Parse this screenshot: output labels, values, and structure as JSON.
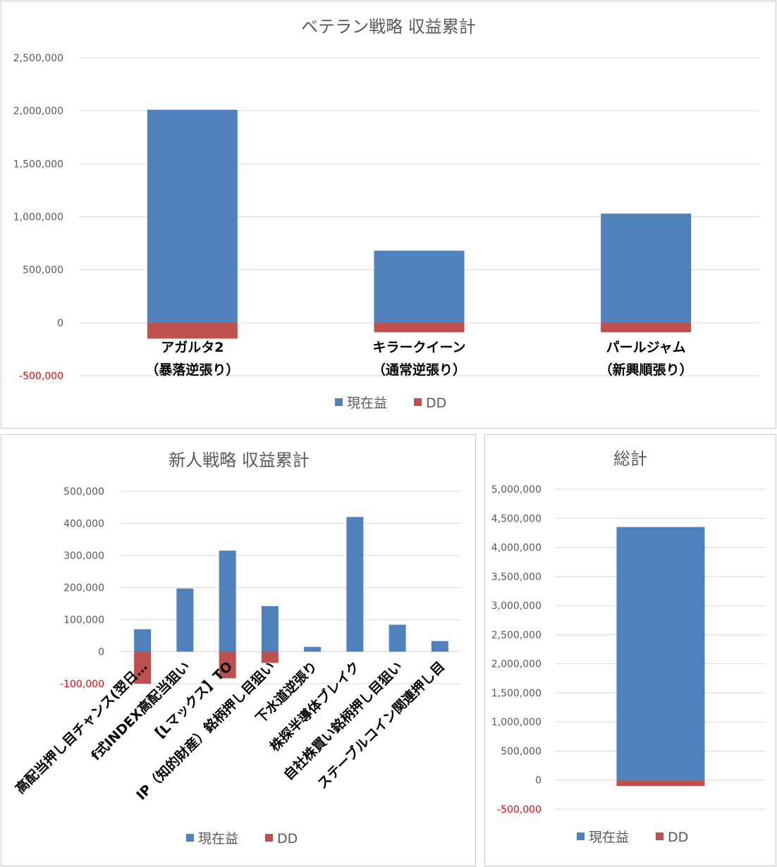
{
  "colors": {
    "profit": "#4f81bd",
    "dd": "#c0504d",
    "negative_tick": "#ff0000"
  },
  "chart_data": [
    {
      "id": "veteran",
      "type": "bar",
      "stacked": true,
      "title": "ベテラン戦略 収益累計",
      "categories": [
        [
          "アガルタ2",
          "（暴落逆張り）"
        ],
        [
          "キラークイーン",
          "（通常逆張り）"
        ],
        [
          "パールジャム",
          "（新興順張り）"
        ]
      ],
      "series": [
        {
          "name": "現在益",
          "values": [
            2010000,
            680000,
            1030000
          ]
        },
        {
          "name": "DD",
          "values": [
            -150000,
            -90000,
            -90000
          ]
        }
      ],
      "ylim": [
        -500000,
        2500000
      ],
      "yticks": [
        {
          "v": 2500000,
          "label": "2,500,000"
        },
        {
          "v": 2000000,
          "label": "2,000,000"
        },
        {
          "v": 1500000,
          "label": "1,500,000"
        },
        {
          "v": 1000000,
          "label": "1,000,000"
        },
        {
          "v": 500000,
          "label": "500,000"
        },
        {
          "v": 0,
          "label": "0"
        },
        {
          "v": -500000,
          "label": "-500,000"
        }
      ],
      "grid": true,
      "legend_position": "bottom"
    },
    {
      "id": "newbie",
      "type": "bar",
      "stacked": true,
      "title": "新人戦略 収益累計",
      "categories": [
        [
          "高配当押し目チャンス(翌日…"
        ],
        [
          "f式INDEX高配当狙い"
        ],
        [
          "【Lマックス】TO"
        ],
        [
          "IP（知的財産）銘柄押し目狙い"
        ],
        [
          "下水道逆張り"
        ],
        [
          "株探半導体ブレイク"
        ],
        [
          "自社株買い銘柄押し目狙い"
        ],
        [
          "ステーブルコイン関連押し目"
        ]
      ],
      "series": [
        {
          "name": "現在益",
          "values": [
            70000,
            197000,
            315000,
            142000,
            15000,
            420000,
            84000,
            33000
          ]
        },
        {
          "name": "DD",
          "values": [
            -100000,
            0,
            -83000,
            -35000,
            0,
            0,
            0,
            0
          ]
        }
      ],
      "ylim": [
        -100000,
        500000
      ],
      "yticks": [
        {
          "v": 500000,
          "label": "500,000"
        },
        {
          "v": 400000,
          "label": "400,000"
        },
        {
          "v": 300000,
          "label": "300,000"
        },
        {
          "v": 200000,
          "label": "200,000"
        },
        {
          "v": 100000,
          "label": "100,000"
        },
        {
          "v": 0,
          "label": "0"
        },
        {
          "v": -100000,
          "label": "-100,000"
        }
      ],
      "grid": true,
      "legend_position": "bottom"
    },
    {
      "id": "total",
      "type": "bar",
      "stacked": true,
      "title": "総計",
      "categories": [
        [
          ""
        ]
      ],
      "series": [
        {
          "name": "現在益",
          "values": [
            4350000
          ]
        },
        {
          "name": "DD",
          "values": [
            -100000
          ]
        }
      ],
      "ylim": [
        -500000,
        5000000
      ],
      "yticks": [
        {
          "v": 5000000,
          "label": "5,000,000"
        },
        {
          "v": 4500000,
          "label": "4,500,000"
        },
        {
          "v": 4000000,
          "label": "4,000,000"
        },
        {
          "v": 3500000,
          "label": "3,500,000"
        },
        {
          "v": 3000000,
          "label": "3,000,000"
        },
        {
          "v": 2500000,
          "label": "2,500,000"
        },
        {
          "v": 2000000,
          "label": "2,000,000"
        },
        {
          "v": 1500000,
          "label": "1,500,000"
        },
        {
          "v": 1000000,
          "label": "1,000,000"
        },
        {
          "v": 500000,
          "label": "500,000"
        },
        {
          "v": 0,
          "label": "0"
        },
        {
          "v": -500000,
          "label": "-500,000"
        }
      ],
      "grid": true,
      "legend_position": "bottom"
    }
  ]
}
